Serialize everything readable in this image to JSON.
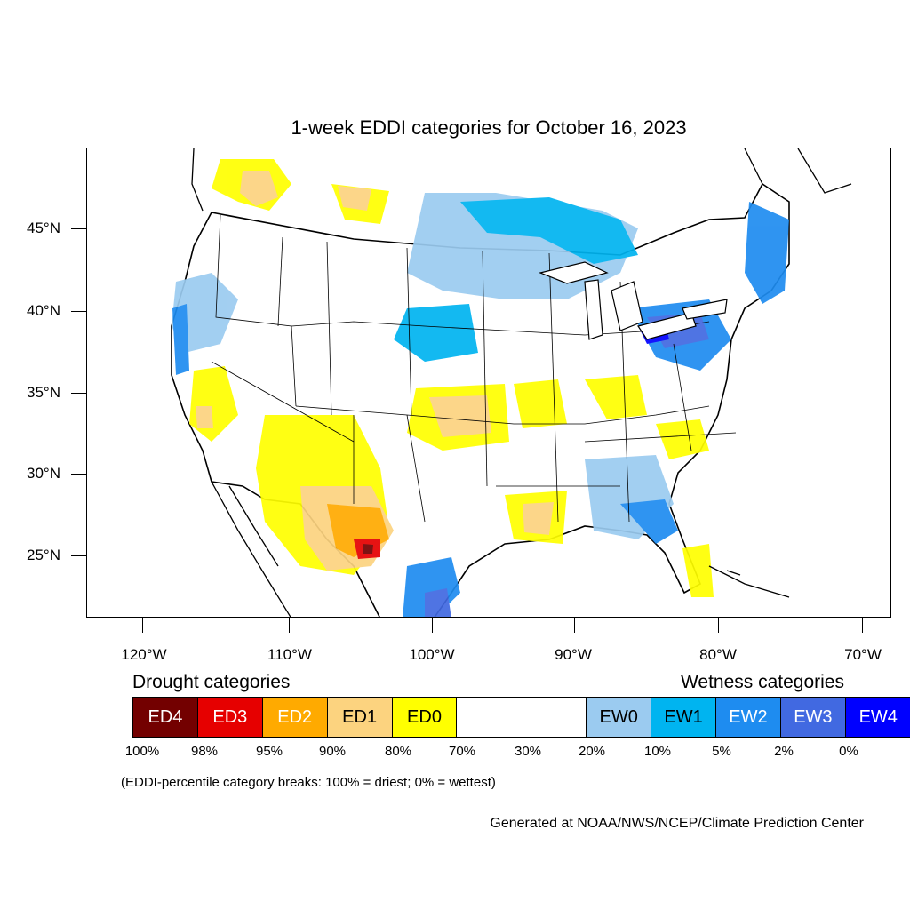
{
  "title": "1-week EDDI categories for October 16, 2023",
  "map": {
    "lat_labels": [
      "45°N",
      "40°N",
      "35°N",
      "30°N",
      "25°N"
    ],
    "lon_labels": [
      "120°W",
      "110°W",
      "100°W",
      "90°W",
      "80°W",
      "70°W"
    ]
  },
  "legend": {
    "drought_heading": "Drought categories",
    "wetness_heading": "Wetness categories",
    "categories": [
      {
        "label": "ED4",
        "color": "#730000",
        "text_color": "#ffffff"
      },
      {
        "label": "ED3",
        "color": "#e60000",
        "text_color": "#ffffff"
      },
      {
        "label": "ED2",
        "color": "#ffaa00",
        "text_color": "#ffffff"
      },
      {
        "label": "ED1",
        "color": "#fcd37f",
        "text_color": "#000000"
      },
      {
        "label": "ED0",
        "color": "#ffff00",
        "text_color": "#000000"
      },
      {
        "label": "",
        "color": "#ffffff",
        "text_color": "#000000"
      },
      {
        "label": "EW0",
        "color": "#9bcbf0",
        "text_color": "#000000"
      },
      {
        "label": "EW1",
        "color": "#00b4f0",
        "text_color": "#000000"
      },
      {
        "label": "EW2",
        "color": "#1e8cf0",
        "text_color": "#ffffff"
      },
      {
        "label": "EW3",
        "color": "#4169e1",
        "text_color": "#ffffff"
      },
      {
        "label": "EW4",
        "color": "#0000ff",
        "text_color": "#ffffff"
      }
    ],
    "breaks": [
      "100%",
      "98%",
      "95%",
      "90%",
      "80%",
      "70%",
      "30%",
      "20%",
      "10%",
      "5%",
      "2%",
      "0%"
    ]
  },
  "note": "(EDDI-percentile category breaks: 100% = driest; 0% = wettest)",
  "credit": "Generated at NOAA/NWS/NCEP/Climate Prediction Center"
}
